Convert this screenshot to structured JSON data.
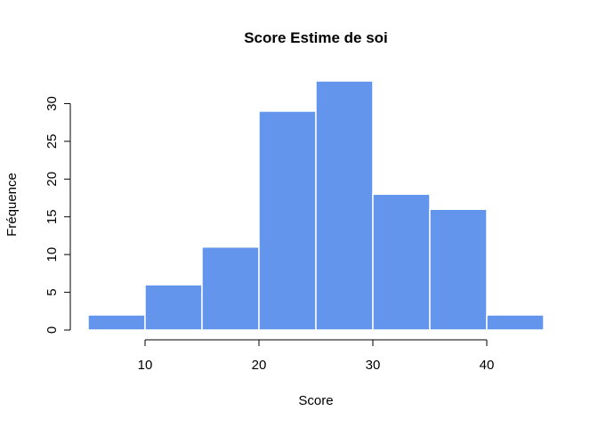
{
  "chart_data": {
    "type": "bar",
    "title": "Score Estime de soi",
    "xlabel": "Score",
    "ylabel": "Fréquence",
    "bins": [
      {
        "start": 5,
        "end": 10,
        "count": 2
      },
      {
        "start": 10,
        "end": 15,
        "count": 6
      },
      {
        "start": 15,
        "end": 20,
        "count": 11
      },
      {
        "start": 20,
        "end": 25,
        "count": 29
      },
      {
        "start": 25,
        "end": 30,
        "count": 33
      },
      {
        "start": 30,
        "end": 35,
        "count": 18
      },
      {
        "start": 35,
        "end": 40,
        "count": 16
      },
      {
        "start": 40,
        "end": 45,
        "count": 2
      }
    ],
    "xticks": [
      10,
      20,
      30,
      40
    ],
    "yticks": [
      0,
      5,
      10,
      15,
      20,
      25,
      30
    ],
    "xlim": [
      5,
      45
    ],
    "ylim": [
      0,
      33
    ],
    "bar_color": "#6495ED",
    "grid": false
  }
}
